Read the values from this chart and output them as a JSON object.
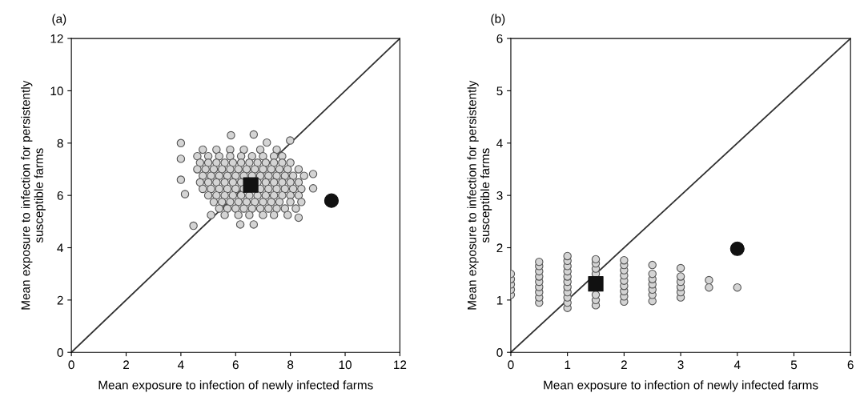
{
  "chart_data": [
    {
      "type": "scatter",
      "title": "(a)",
      "xlabel": "Mean exposure to infection of newly infected farms",
      "ylabel": "Mean exposure to infection for persistently\nsusceptible farms",
      "xlim": [
        0,
        12
      ],
      "ylim": [
        0,
        12
      ],
      "xticks": [
        0,
        2,
        4,
        6,
        8,
        10,
        12
      ],
      "yticks": [
        0,
        2,
        4,
        6,
        8,
        10,
        12
      ],
      "grid": false,
      "legend": false,
      "series": [
        {
          "type": "line",
          "color": "#333333",
          "marker": "none",
          "x": [
            0,
            12
          ],
          "values": [
            0,
            12
          ]
        },
        {
          "type": "scatter",
          "color": "#d4d4d4",
          "marker": "circle",
          "x": [
            4.0,
            4.0,
            4.0,
            4.15,
            4.46,
            5.83,
            6.66,
            7.14,
            7.99,
            8.83,
            8.83,
            8.3,
            6.66,
            6.17,
            4.8,
            5.3,
            5.8,
            6.3,
            6.9,
            7.5,
            4.6,
            5.0,
            5.4,
            5.8,
            6.2,
            6.6,
            7.0,
            7.4,
            7.7,
            4.7,
            5.0,
            5.3,
            5.6,
            5.9,
            6.2,
            6.5,
            6.8,
            7.1,
            7.4,
            7.7,
            8.0,
            4.6,
            4.9,
            5.2,
            5.5,
            5.8,
            6.1,
            6.4,
            6.7,
            7.0,
            7.3,
            7.6,
            7.9,
            8.3,
            4.8,
            5.1,
            5.4,
            5.7,
            6.0,
            6.3,
            6.6,
            6.9,
            7.2,
            7.5,
            7.8,
            8.1,
            8.5,
            4.7,
            5.0,
            5.3,
            5.6,
            5.9,
            6.2,
            6.8,
            7.1,
            7.4,
            7.7,
            8.0,
            8.3,
            4.8,
            5.1,
            5.4,
            5.7,
            6.0,
            6.3,
            6.9,
            7.2,
            7.5,
            7.8,
            8.1,
            8.4,
            5.0,
            5.3,
            5.6,
            5.9,
            6.2,
            6.5,
            6.8,
            7.1,
            7.4,
            7.7,
            8.0,
            8.3,
            5.2,
            5.5,
            5.8,
            6.1,
            6.4,
            6.7,
            7.0,
            7.3,
            7.6,
            8.0,
            8.4,
            5.4,
            5.7,
            6.0,
            6.3,
            6.6,
            6.9,
            7.2,
            7.5,
            7.8,
            8.2,
            5.1,
            5.6,
            6.1,
            6.5,
            7.0,
            7.4,
            7.9
          ],
          "values": [
            8.0,
            7.4,
            6.6,
            6.05,
            4.84,
            8.3,
            8.33,
            8.02,
            8.1,
            6.82,
            6.27,
            5.15,
            4.89,
            4.89,
            7.75,
            7.75,
            7.75,
            7.75,
            7.75,
            7.75,
            7.5,
            7.5,
            7.5,
            7.5,
            7.5,
            7.5,
            7.5,
            7.5,
            7.5,
            7.25,
            7.25,
            7.25,
            7.25,
            7.25,
            7.25,
            7.25,
            7.25,
            7.25,
            7.25,
            7.25,
            7.25,
            7.0,
            7.0,
            7.0,
            7.0,
            7.0,
            7.0,
            7.0,
            7.0,
            7.0,
            7.0,
            7.0,
            7.0,
            7.0,
            6.75,
            6.75,
            6.75,
            6.75,
            6.75,
            6.75,
            6.75,
            6.75,
            6.75,
            6.75,
            6.75,
            6.75,
            6.75,
            6.5,
            6.5,
            6.5,
            6.5,
            6.5,
            6.5,
            6.5,
            6.5,
            6.5,
            6.5,
            6.5,
            6.5,
            6.25,
            6.25,
            6.25,
            6.25,
            6.25,
            6.25,
            6.25,
            6.25,
            6.25,
            6.25,
            6.25,
            6.25,
            6.0,
            6.0,
            6.0,
            6.0,
            6.0,
            6.0,
            6.0,
            6.0,
            6.0,
            6.0,
            6.0,
            6.0,
            5.75,
            5.75,
            5.75,
            5.75,
            5.75,
            5.75,
            5.75,
            5.75,
            5.75,
            5.75,
            5.75,
            5.5,
            5.5,
            5.5,
            5.5,
            5.5,
            5.5,
            5.5,
            5.5,
            5.5,
            5.5,
            5.25,
            5.25,
            5.25,
            5.25,
            5.25,
            5.25,
            5.25
          ]
        },
        {
          "type": "scatter",
          "color": "#111111",
          "marker": "square",
          "x": [
            6.55
          ],
          "values": [
            6.4
          ]
        },
        {
          "type": "scatter",
          "color": "#111111",
          "marker": "circle_big",
          "x": [
            9.5
          ],
          "values": [
            5.8
          ]
        }
      ]
    },
    {
      "type": "scatter",
      "title": "(b)",
      "xlabel": "Mean exposure to infection of newly infected farms",
      "ylabel": "Mean exposure to infection for persistently\nsusceptible farms",
      "xlim": [
        0,
        6
      ],
      "ylim": [
        0,
        6
      ],
      "xticks": [
        0,
        1,
        2,
        3,
        4,
        5,
        6
      ],
      "yticks": [
        0,
        1,
        2,
        3,
        4,
        5,
        6
      ],
      "grid": false,
      "legend": false,
      "series": [
        {
          "type": "line",
          "color": "#333333",
          "marker": "none",
          "x": [
            0,
            6
          ],
          "values": [
            0,
            6
          ]
        },
        {
          "type": "scatter",
          "color": "#d4d4d4",
          "marker": "circle",
          "x": [
            0,
            0,
            0,
            0,
            0,
            0.5,
            0.5,
            0.5,
            0.5,
            0.5,
            0.5,
            0.5,
            0.5,
            0.5,
            1,
            1,
            1,
            1,
            1,
            1,
            1,
            1,
            1,
            1,
            1,
            1.5,
            1.5,
            1.5,
            1.5,
            1.5,
            1.5,
            1.5,
            2,
            2,
            2,
            2,
            2,
            2,
            2,
            2,
            2,
            2.5,
            2.5,
            2.5,
            2.5,
            2.5,
            2.5,
            2.5,
            3,
            3,
            3,
            3,
            3,
            3,
            3.5,
            3.5,
            4
          ],
          "values": [
            1.1,
            1.2,
            1.3,
            1.4,
            1.5,
            0.95,
            1.05,
            1.15,
            1.25,
            1.35,
            1.45,
            1.55,
            1.65,
            1.73,
            0.85,
            0.95,
            1.05,
            1.15,
            1.25,
            1.35,
            1.45,
            1.55,
            1.65,
            1.75,
            1.84,
            0.9,
            1.0,
            1.1,
            1.5,
            1.6,
            1.7,
            1.78,
            0.97,
            1.07,
            1.17,
            1.27,
            1.37,
            1.47,
            1.57,
            1.67,
            1.76,
            0.98,
            1.1,
            1.2,
            1.3,
            1.4,
            1.5,
            1.67,
            1.05,
            1.15,
            1.25,
            1.35,
            1.45,
            1.61,
            1.38,
            1.24,
            1.24
          ]
        },
        {
          "type": "scatter",
          "color": "#111111",
          "marker": "square",
          "x": [
            1.5
          ],
          "values": [
            1.31
          ]
        },
        {
          "type": "scatter",
          "color": "#111111",
          "marker": "circle_big",
          "x": [
            4.0
          ],
          "values": [
            1.98
          ]
        }
      ]
    }
  ]
}
